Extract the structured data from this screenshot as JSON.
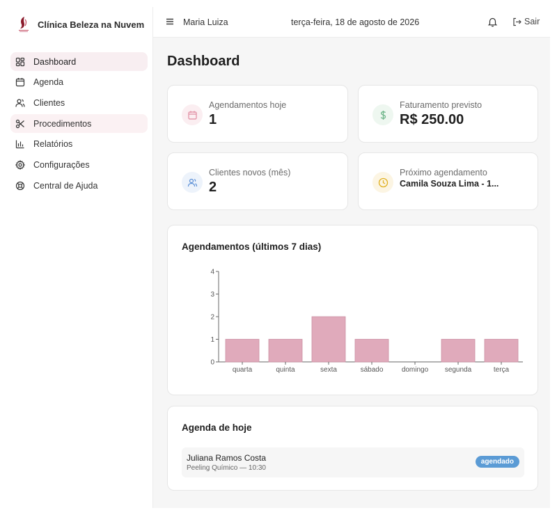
{
  "app": {
    "name": "Clínica Beleza na Nuvem"
  },
  "sidebar": {
    "items": [
      {
        "label": "Dashboard",
        "icon": "dashboard-grid-icon"
      },
      {
        "label": "Agenda",
        "icon": "calendar-icon"
      },
      {
        "label": "Clientes",
        "icon": "users-icon"
      },
      {
        "label": "Procedimentos",
        "icon": "scissors-icon"
      },
      {
        "label": "Relatórios",
        "icon": "bar-chart-icon"
      },
      {
        "label": "Configurações",
        "icon": "gear-icon"
      },
      {
        "label": "Central de Ajuda",
        "icon": "lifebuoy-icon"
      }
    ]
  },
  "topbar": {
    "user": "Maria Luiza",
    "date": "terça-feira, 18 de agosto de 2026",
    "logout_label": "Sair"
  },
  "page": {
    "title": "Dashboard"
  },
  "stats": {
    "appointments_today": {
      "label": "Agendamentos hoje",
      "value": "1",
      "icon": "calendar-icon",
      "color": "#e08aa0"
    },
    "expected_revenue": {
      "label": "Faturamento previsto",
      "value": "R$ 250.00",
      "icon": "dollar-icon",
      "color": "#6fb58a"
    },
    "new_clients": {
      "label": "Clientes novos (mês)",
      "value": "2",
      "icon": "users-icon",
      "color": "#5b8fd6"
    },
    "next_appointment": {
      "label": "Próximo agendamento",
      "value": "Camila Souza Lima - 1...",
      "icon": "clock-icon",
      "color": "#e0b020"
    }
  },
  "chart_section": {
    "title": "Agendamentos (últimos 7 dias)"
  },
  "chart_data": {
    "type": "bar",
    "categories": [
      "quarta",
      "quinta",
      "sexta",
      "sábado",
      "domingo",
      "segunda",
      "terça"
    ],
    "values": [
      1,
      1,
      2,
      1,
      0,
      1,
      1
    ],
    "ylim": [
      0,
      4
    ],
    "yticks": [
      "0",
      "1",
      "2",
      "3",
      "4"
    ],
    "bar_color": "#e0aabb",
    "bar_stroke": "#cc8fa3"
  },
  "today_agenda": {
    "title": "Agenda de hoje",
    "items": [
      {
        "client": "Juliana Ramos Costa",
        "detail": "Peeling Químico — 10:30",
        "status": "agendado"
      }
    ]
  }
}
